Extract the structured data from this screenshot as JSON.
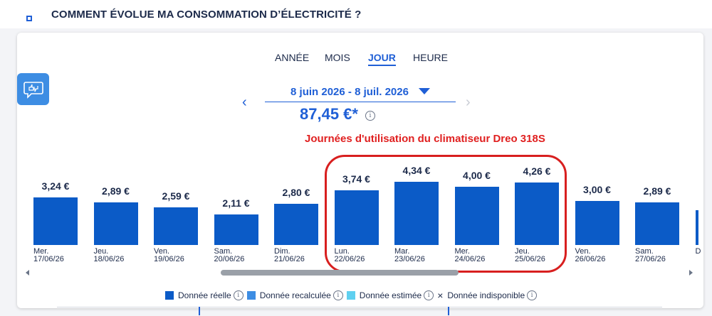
{
  "page_title": "COMMENT ÉVOLUE MA CONSOMMATION D’ÉLECTRICITÉ ?",
  "tabs": [
    {
      "label": "ANNÉE",
      "active": false
    },
    {
      "label": "MOIS",
      "active": false
    },
    {
      "label": "JOUR",
      "active": true
    },
    {
      "label": "HEURE",
      "active": false
    }
  ],
  "period": {
    "label": "8 juin 2026 - 8 juil. 2026",
    "prev": "‹",
    "next": "›"
  },
  "total": "87,45 €*",
  "info_glyph": "i",
  "annotation": "Journées d'utilisation du climatiseur Dreo 318S",
  "colors": {
    "accent": "#1f5fd6",
    "bar_real": "#0b5bc7",
    "bar_recalc": "#3d8de3",
    "bar_estimated": "#5fd0f0",
    "annotation_red": "#e02020"
  },
  "chart_data": {
    "type": "bar",
    "unit": "€",
    "categories": [
      "Mer. 17/06/26",
      "Jeu. 18/06/26",
      "Ven. 19/06/26",
      "Sam. 20/06/26",
      "Dim. 21/06/26",
      "Lun. 22/06/26",
      "Mar. 23/06/26",
      "Mer. 24/06/26",
      "Jeu. 25/06/26",
      "Ven. 26/06/26",
      "Sam. 27/06/26"
    ],
    "day_names": [
      "Mer.",
      "Jeu.",
      "Ven.",
      "Sam.",
      "Dim.",
      "Lun.",
      "Mar.",
      "Mer.",
      "Jeu.",
      "Ven.",
      "Sam."
    ],
    "dates": [
      "17/06/26",
      "18/06/26",
      "19/06/26",
      "20/06/26",
      "21/06/26",
      "22/06/26",
      "23/06/26",
      "24/06/26",
      "25/06/26",
      "26/06/26",
      "27/06/26"
    ],
    "values": [
      3.24,
      2.89,
      2.59,
      2.11,
      2.8,
      3.74,
      4.34,
      4.0,
      4.26,
      3.0,
      2.89
    ],
    "value_labels": [
      "3,24 €",
      "2,89 €",
      "2,59 €",
      "2,11 €",
      "2,80 €",
      "3,74 €",
      "4,34 €",
      "4,00 €",
      "4,26 €",
      "3,00 €",
      "2,89 €"
    ],
    "highlighted_categories": [
      "Lun. 22/06/26",
      "Mar. 23/06/26",
      "Mer. 24/06/26",
      "Jeu. 25/06/26"
    ],
    "partial_next_day": "D"
  },
  "legend": [
    {
      "label": "Donnée réelle",
      "color": "#0b5bc7",
      "type": "swatch"
    },
    {
      "label": "Donnée recalculée",
      "color": "#3d8de3",
      "type": "swatch"
    },
    {
      "label": "Donnée estimée",
      "color": "#5fd0f0",
      "type": "swatch"
    },
    {
      "label": "Donnée indisponible",
      "color": "#1c2a4a",
      "type": "cross",
      "glyph": "×"
    }
  ],
  "icons": {
    "chat": "chat-thumbs-icon",
    "title_bullet": "square-bullet-icon"
  }
}
